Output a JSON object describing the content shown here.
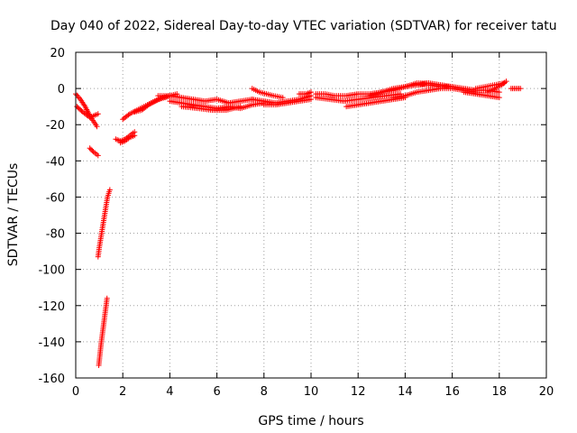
{
  "chart_data": {
    "type": "scatter",
    "title": "Day 040 of 2022, Sidereal Day-to-day VTEC variation (SDTVAR) for receiver tatu",
    "xlabel": "GPS time / hours",
    "ylabel": "SDTVAR / TECUs",
    "xlim": [
      0,
      20
    ],
    "ylim": [
      -160,
      20
    ],
    "xticks": [
      0,
      2,
      4,
      6,
      8,
      10,
      12,
      14,
      16,
      18,
      20
    ],
    "yticks": [
      -160,
      -140,
      -120,
      -100,
      -80,
      -60,
      -40,
      -20,
      0,
      20
    ],
    "grid": true,
    "marker": "+",
    "color": "#ff0000",
    "segments": [
      {
        "x": [
          0.0,
          0.2,
          0.4,
          0.6,
          0.9
        ],
        "y": [
          -3,
          -6,
          -10,
          -15,
          -21
        ]
      },
      {
        "x": [
          0.05,
          0.3,
          0.6,
          0.95
        ],
        "y": [
          -10,
          -13,
          -16,
          -14
        ]
      },
      {
        "x": [
          0.6,
          0.75,
          0.95
        ],
        "y": [
          -33,
          -35,
          -37
        ]
      },
      {
        "x": [
          0.95,
          1.0,
          1.05,
          1.1,
          1.15,
          1.2,
          1.25,
          1.3,
          1.35,
          1.45
        ],
        "y": [
          -93,
          -88,
          -84,
          -80,
          -76,
          -72,
          -68,
          -64,
          -60,
          -56
        ]
      },
      {
        "x": [
          0.98,
          1.03,
          1.08,
          1.13,
          1.18,
          1.23,
          1.28,
          1.33
        ],
        "y": [
          -153,
          -147,
          -141,
          -136,
          -131,
          -126,
          -121,
          -116
        ]
      },
      {
        "x": [
          1.7,
          1.9,
          2.1,
          2.3,
          2.5
        ],
        "y": [
          -28,
          -29,
          -28,
          -26,
          -24
        ]
      },
      {
        "x": [
          1.9,
          2.1,
          2.3,
          2.5
        ],
        "y": [
          -30,
          -29,
          -27,
          -26
        ]
      },
      {
        "x": [
          2.0,
          2.3,
          2.6,
          2.9,
          3.2,
          3.5,
          3.8,
          4.0
        ],
        "y": [
          -17,
          -14,
          -12,
          -10,
          -8,
          -6,
          -5,
          -4
        ]
      },
      {
        "x": [
          2.5,
          2.8,
          3.1,
          3.4,
          3.7,
          4.0,
          4.3
        ],
        "y": [
          -13,
          -12,
          -9,
          -7,
          -5,
          -4,
          -3
        ]
      },
      {
        "x": [
          3.5,
          4.0,
          4.5,
          5.0,
          5.5,
          6.0,
          6.5,
          7.0,
          7.5
        ],
        "y": [
          -4,
          -4,
          -5,
          -6,
          -7,
          -6,
          -8,
          -7,
          -6
        ]
      },
      {
        "x": [
          4.0,
          4.5,
          5.0,
          5.5,
          6.0,
          6.5,
          7.0,
          7.5,
          8.0
        ],
        "y": [
          -7,
          -8,
          -9,
          -10,
          -11,
          -10,
          -11,
          -9,
          -8
        ]
      },
      {
        "x": [
          4.5,
          5.2,
          5.8,
          6.4,
          7.0
        ],
        "y": [
          -10,
          -11,
          -12,
          -12,
          -10
        ]
      },
      {
        "x": [
          7.5,
          7.8,
          8.1,
          8.4,
          8.8
        ],
        "y": [
          0,
          -2,
          -3,
          -4,
          -5
        ]
      },
      {
        "x": [
          7.5,
          8.0,
          8.5,
          9.0,
          9.5,
          10.0
        ],
        "y": [
          -6,
          -7,
          -8,
          -7,
          -6,
          -4
        ]
      },
      {
        "x": [
          8.0,
          8.5,
          9.0,
          9.5,
          10.0
        ],
        "y": [
          -9,
          -9,
          -8,
          -7,
          -6
        ]
      },
      {
        "x": [
          9.5,
          9.8,
          10.0
        ],
        "y": [
          -3,
          -3,
          -2
        ]
      },
      {
        "x": [
          10.2,
          10.6,
          11.0,
          11.5,
          12.0,
          12.5,
          13.0
        ],
        "y": [
          -3,
          -3,
          -4,
          -4,
          -3,
          -3,
          -2
        ]
      },
      {
        "x": [
          10.2,
          10.8,
          11.4,
          12.0,
          12.6,
          13.2,
          13.8
        ],
        "y": [
          -5,
          -6,
          -7,
          -6,
          -5,
          -4,
          -3
        ]
      },
      {
        "x": [
          11.5,
          12.0,
          12.5,
          13.0,
          13.5,
          14.0
        ],
        "y": [
          -10,
          -9,
          -8,
          -7,
          -6,
          -5
        ]
      },
      {
        "x": [
          12.5,
          13.0,
          13.5,
          14.0,
          14.5,
          15.0
        ],
        "y": [
          -4,
          -2,
          0,
          1,
          2,
          3
        ]
      },
      {
        "x": [
          13.0,
          13.5,
          14.0,
          14.5,
          15.0,
          15.5,
          16.0
        ],
        "y": [
          -2,
          -1,
          1,
          3,
          3,
          2,
          1
        ]
      },
      {
        "x": [
          13.5,
          14.0,
          14.5,
          15.0,
          15.5,
          16.0,
          16.5,
          17.0
        ],
        "y": [
          -5,
          -4,
          -2,
          -1,
          0,
          0,
          -1,
          -2
        ]
      },
      {
        "x": [
          14.5,
          15.0,
          15.5,
          16.0,
          16.5,
          17.0,
          17.5,
          18.0
        ],
        "y": [
          2,
          2,
          1,
          1,
          0,
          -1,
          -1,
          -2
        ]
      },
      {
        "x": [
          16.5,
          17.0,
          17.5,
          18.0
        ],
        "y": [
          -2,
          -3,
          -4,
          -5
        ]
      },
      {
        "x": [
          17.0,
          17.4,
          17.8,
          18.2
        ],
        "y": [
          0,
          1,
          2,
          3
        ]
      },
      {
        "x": [
          17.5,
          17.8,
          18.1,
          18.3
        ],
        "y": [
          -2,
          0,
          2,
          4
        ]
      },
      {
        "x": [
          18.5,
          18.7,
          18.9
        ],
        "y": [
          0,
          0,
          0
        ]
      }
    ]
  }
}
